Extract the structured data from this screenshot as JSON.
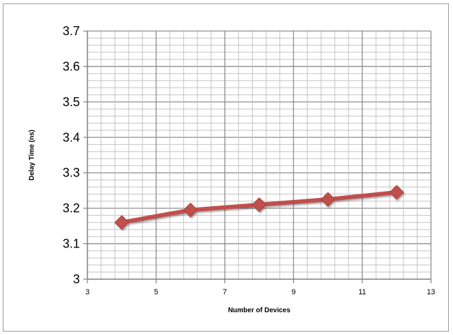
{
  "chart_data": {
    "type": "line",
    "title": "",
    "xlabel": "Number of Devices",
    "ylabel": "Delay Time (ns)",
    "xlim": [
      3,
      13
    ],
    "ylim": [
      3.0,
      3.7
    ],
    "x_ticks": [
      "3",
      "5",
      "7",
      "9",
      "11",
      "13"
    ],
    "y_ticks": [
      "3",
      "3.1",
      "3.2",
      "3.3",
      "3.4",
      "3.5",
      "3.6",
      "3.7"
    ],
    "grid": true,
    "legend": "none",
    "series": [
      {
        "x": [
          4,
          6,
          8,
          10,
          12
        ],
        "y": [
          3.16,
          3.195,
          3.21,
          3.225,
          3.245
        ],
        "color": "#c0504d",
        "marker": "diamond"
      }
    ]
  }
}
